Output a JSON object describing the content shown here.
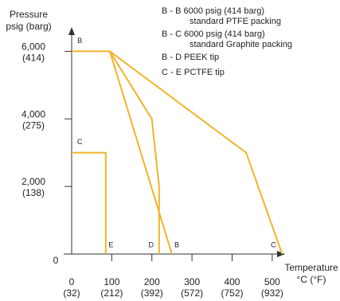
{
  "chart_data": {
    "type": "line",
    "title": "",
    "ylabel_lines": [
      "Pressure",
      "psig (barg)"
    ],
    "xlabel_lines": [
      "Temperature",
      "°C (°F)"
    ],
    "xlim": [
      0,
      540
    ],
    "ylim": [
      0,
      7000
    ],
    "x_ticks": [
      {
        "value": 0,
        "label": "0",
        "sub": "(32)"
      },
      {
        "value": 100,
        "label": "100",
        "sub": "(212)"
      },
      {
        "value": 200,
        "label": "200",
        "sub": "(392)"
      },
      {
        "value": 300,
        "label": "300",
        "sub": "(572)"
      },
      {
        "value": 400,
        "label": "400",
        "sub": "(752)"
      },
      {
        "value": 500,
        "label": "500",
        "sub": "(932)"
      }
    ],
    "y_ticks": [
      {
        "value": 0,
        "label": "0",
        "sub": ""
      },
      {
        "value": 2000,
        "label": "2,000",
        "sub": "(138)"
      },
      {
        "value": 4000,
        "label": "4,000",
        "sub": "(275)"
      },
      {
        "value": 6000,
        "label": "6,000",
        "sub": "(414)"
      }
    ],
    "series": [
      {
        "name": "B - B",
        "points": [
          [
            0,
            6000
          ],
          [
            95,
            6000
          ],
          [
            250,
            0
          ]
        ]
      },
      {
        "name": "B - C",
        "points": [
          [
            95,
            6000
          ],
          [
            200,
            4000
          ],
          [
            218,
            2000
          ],
          [
            218,
            0
          ]
        ]
      },
      {
        "name": "B - D",
        "points": [
          [
            95,
            6000
          ],
          [
            435,
            3000
          ],
          [
            525,
            0
          ]
        ]
      },
      {
        "name": "C - E",
        "points": [
          [
            0,
            3000
          ],
          [
            85,
            3000
          ],
          [
            85,
            0
          ]
        ]
      }
    ],
    "point_labels": [
      {
        "text": "B",
        "x": 20,
        "y": 6200
      },
      {
        "text": "C",
        "x": 20,
        "y": 3200
      },
      {
        "text": "E",
        "x": 98,
        "y": 150
      },
      {
        "text": "D",
        "x": 198,
        "y": 150
      },
      {
        "text": "B",
        "x": 262,
        "y": 150
      },
      {
        "text": "C",
        "x": 503,
        "y": 150
      }
    ],
    "legend_placement": "top-right",
    "legend": [
      {
        "lines": [
          "B - B  6000 psig (414 barg)",
          "standard PTFE packing"
        ]
      },
      {
        "lines": [
          "B - C  6000 psig (414 barg)",
          "standard Graphite packing"
        ]
      },
      {
        "lines": [
          "B - D  PEEK tip"
        ]
      },
      {
        "lines": [
          "C - E  PCTFE tip"
        ]
      }
    ],
    "line_color": "#f0b429",
    "axis_color": "#333333",
    "grid": false
  }
}
